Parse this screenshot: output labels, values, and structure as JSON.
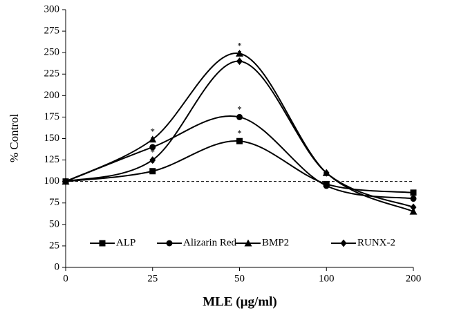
{
  "chart_data": {
    "type": "line",
    "xlabel": "MLE (µg/ml)",
    "ylabel": "% Control",
    "categories": [
      "0",
      "25",
      "50",
      "100",
      "200"
    ],
    "ylim": [
      0,
      300
    ],
    "yticks": [
      0,
      25,
      50,
      75,
      100,
      125,
      150,
      175,
      200,
      225,
      250,
      275,
      300
    ],
    "reference_line": 100,
    "legend": "bottom",
    "series": [
      {
        "name": "ALP",
        "color": "#000000",
        "marker": "square",
        "values": [
          100,
          112,
          147,
          97,
          87
        ],
        "significance": [
          null,
          "*",
          "*",
          null,
          null
        ]
      },
      {
        "name": "Alizarin Red",
        "color": "#000000",
        "marker": "circle",
        "values": [
          100,
          140,
          175,
          95,
          80
        ],
        "significance": [
          null,
          "*",
          "*",
          null,
          null
        ]
      },
      {
        "name": "BMP2",
        "color": "#000000",
        "marker": "triangle",
        "values": [
          100,
          149,
          249,
          110,
          65
        ],
        "significance": [
          null,
          "*",
          "*",
          null,
          null
        ]
      },
      {
        "name": "RUNX-2",
        "color": "#000000",
        "marker": "diamond",
        "values": [
          100,
          125,
          240,
          110,
          70
        ],
        "significance": [
          null,
          "*",
          "*",
          null,
          null
        ]
      }
    ]
  }
}
